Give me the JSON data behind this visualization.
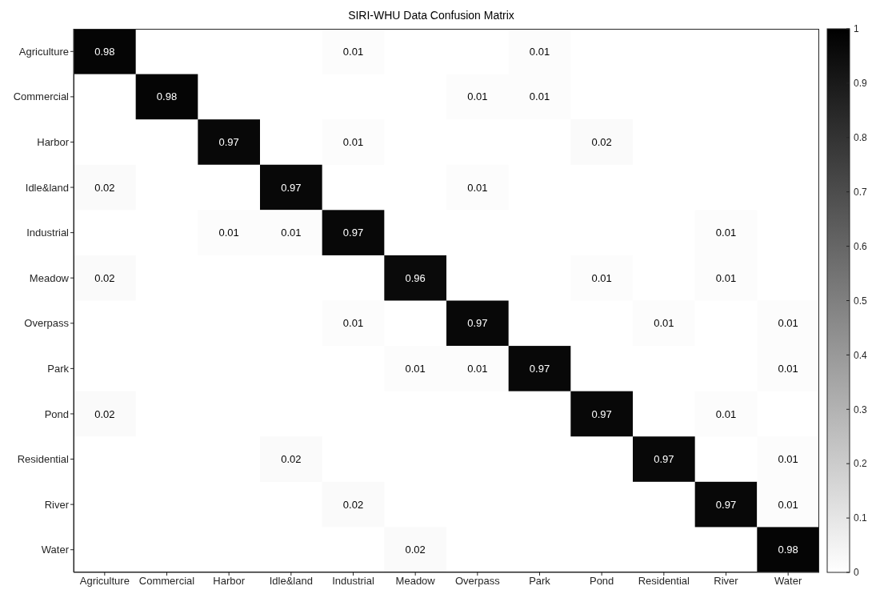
{
  "chart_data": {
    "type": "heatmap",
    "title": "SIRI-WHU Data Confusion Matrix",
    "categories": [
      "Agriculture",
      "Commercial",
      "Harbor",
      "Idle&land",
      "Industrial",
      "Meadow",
      "Overpass",
      "Park",
      "Pond",
      "Residential",
      "River",
      "Water"
    ],
    "y_categories": [
      "Agriculture",
      "Commercial",
      "Harbor",
      "Idle&land",
      "Industrial",
      "Meadow",
      "Overpass",
      "Park",
      "Pond",
      "Residential",
      "River",
      "Water"
    ],
    "cells": [
      [
        0.98,
        null,
        null,
        null,
        0.01,
        null,
        null,
        0.01,
        null,
        null,
        null,
        null
      ],
      [
        null,
        0.98,
        null,
        null,
        null,
        null,
        0.01,
        0.01,
        null,
        null,
        null,
        null
      ],
      [
        null,
        null,
        0.97,
        null,
        0.01,
        null,
        null,
        null,
        0.02,
        null,
        null,
        null
      ],
      [
        0.02,
        null,
        null,
        0.97,
        null,
        null,
        0.01,
        null,
        null,
        null,
        null,
        null
      ],
      [
        null,
        null,
        0.01,
        0.01,
        0.97,
        null,
        null,
        null,
        null,
        null,
        0.01,
        null
      ],
      [
        0.02,
        null,
        null,
        null,
        null,
        0.96,
        null,
        null,
        0.01,
        null,
        0.01,
        null
      ],
      [
        null,
        null,
        null,
        null,
        0.01,
        null,
        0.97,
        null,
        null,
        0.01,
        null,
        0.01
      ],
      [
        null,
        null,
        null,
        null,
        null,
        0.01,
        0.01,
        0.97,
        null,
        null,
        null,
        0.01
      ],
      [
        0.02,
        null,
        null,
        null,
        null,
        null,
        null,
        null,
        0.97,
        null,
        0.01,
        null
      ],
      [
        null,
        null,
        null,
        0.02,
        null,
        null,
        null,
        null,
        null,
        0.97,
        null,
        0.01
      ],
      [
        null,
        null,
        null,
        null,
        0.02,
        null,
        null,
        null,
        null,
        null,
        0.97,
        0.01
      ],
      [
        null,
        null,
        null,
        null,
        null,
        0.02,
        null,
        null,
        null,
        null,
        null,
        0.98
      ]
    ],
    "data_labels": true,
    "clim": [
      0,
      1
    ],
    "cticks": [
      0,
      0.1,
      0.2,
      0.3,
      0.4,
      0.5,
      0.6,
      0.7,
      0.8,
      0.9,
      1
    ]
  }
}
